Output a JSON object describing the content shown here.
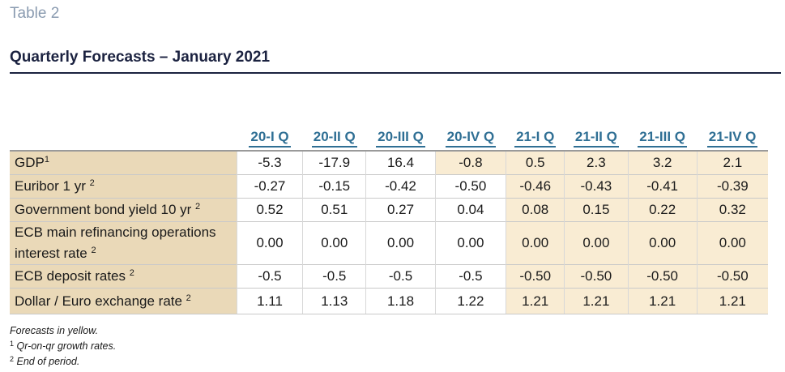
{
  "table_number": "Table 2",
  "title": "Quarterly Forecasts – January 2021",
  "columns": [
    "20-I Q",
    "20-II Q",
    "20-III Q",
    "20-IV Q",
    "21-I Q",
    "21-II Q",
    "21-III Q",
    "21-IV Q"
  ],
  "rows": [
    {
      "label": "GDP",
      "sup": "1",
      "values": [
        "-5.3",
        "-17.9",
        "16.4",
        "-0.8",
        "0.5",
        "2.3",
        "3.2",
        "2.1"
      ],
      "forecast_from": 3
    },
    {
      "label": "Euribor 1 yr",
      "sup": "2",
      "values": [
        "-0.27",
        "-0.15",
        "-0.42",
        "-0.50",
        "-0.46",
        "-0.43",
        "-0.41",
        "-0.39"
      ],
      "forecast_from": 4
    },
    {
      "label": "Government bond yield 10 yr",
      "sup": "2",
      "values": [
        "0.52",
        "0.51",
        "0.27",
        "0.04",
        "0.08",
        "0.15",
        "0.22",
        "0.32"
      ],
      "forecast_from": 4
    },
    {
      "label": "ECB main refinancing operations interest rate",
      "sup": "2",
      "values": [
        "0.00",
        "0.00",
        "0.00",
        "0.00",
        "0.00",
        "0.00",
        "0.00",
        "0.00"
      ],
      "forecast_from": 4
    },
    {
      "label": "ECB deposit rates",
      "sup": "2",
      "values": [
        "-0.5",
        "-0.5",
        "-0.5",
        "-0.5",
        "-0.50",
        "-0.50",
        "-0.50",
        "-0.50"
      ],
      "forecast_from": 4
    },
    {
      "label": "Dollar / Euro exchange rate",
      "sup": "2",
      "values": [
        "1.11",
        "1.13",
        "1.18",
        "1.22",
        "1.21",
        "1.21",
        "1.21",
        "1.21"
      ],
      "forecast_from": 4
    }
  ],
  "notes": {
    "forecast_note": "Forecasts in yellow.",
    "note1_mark": "1",
    "note1": "Qr-on-qr growth rates.",
    "note2_mark": "2",
    "note2": "End of period."
  },
  "colors": {
    "label_bg": "#ead9b8",
    "forecast_bg": "#f9ecd3",
    "header_text": "#2f6f94",
    "title_text": "#1b2240"
  }
}
